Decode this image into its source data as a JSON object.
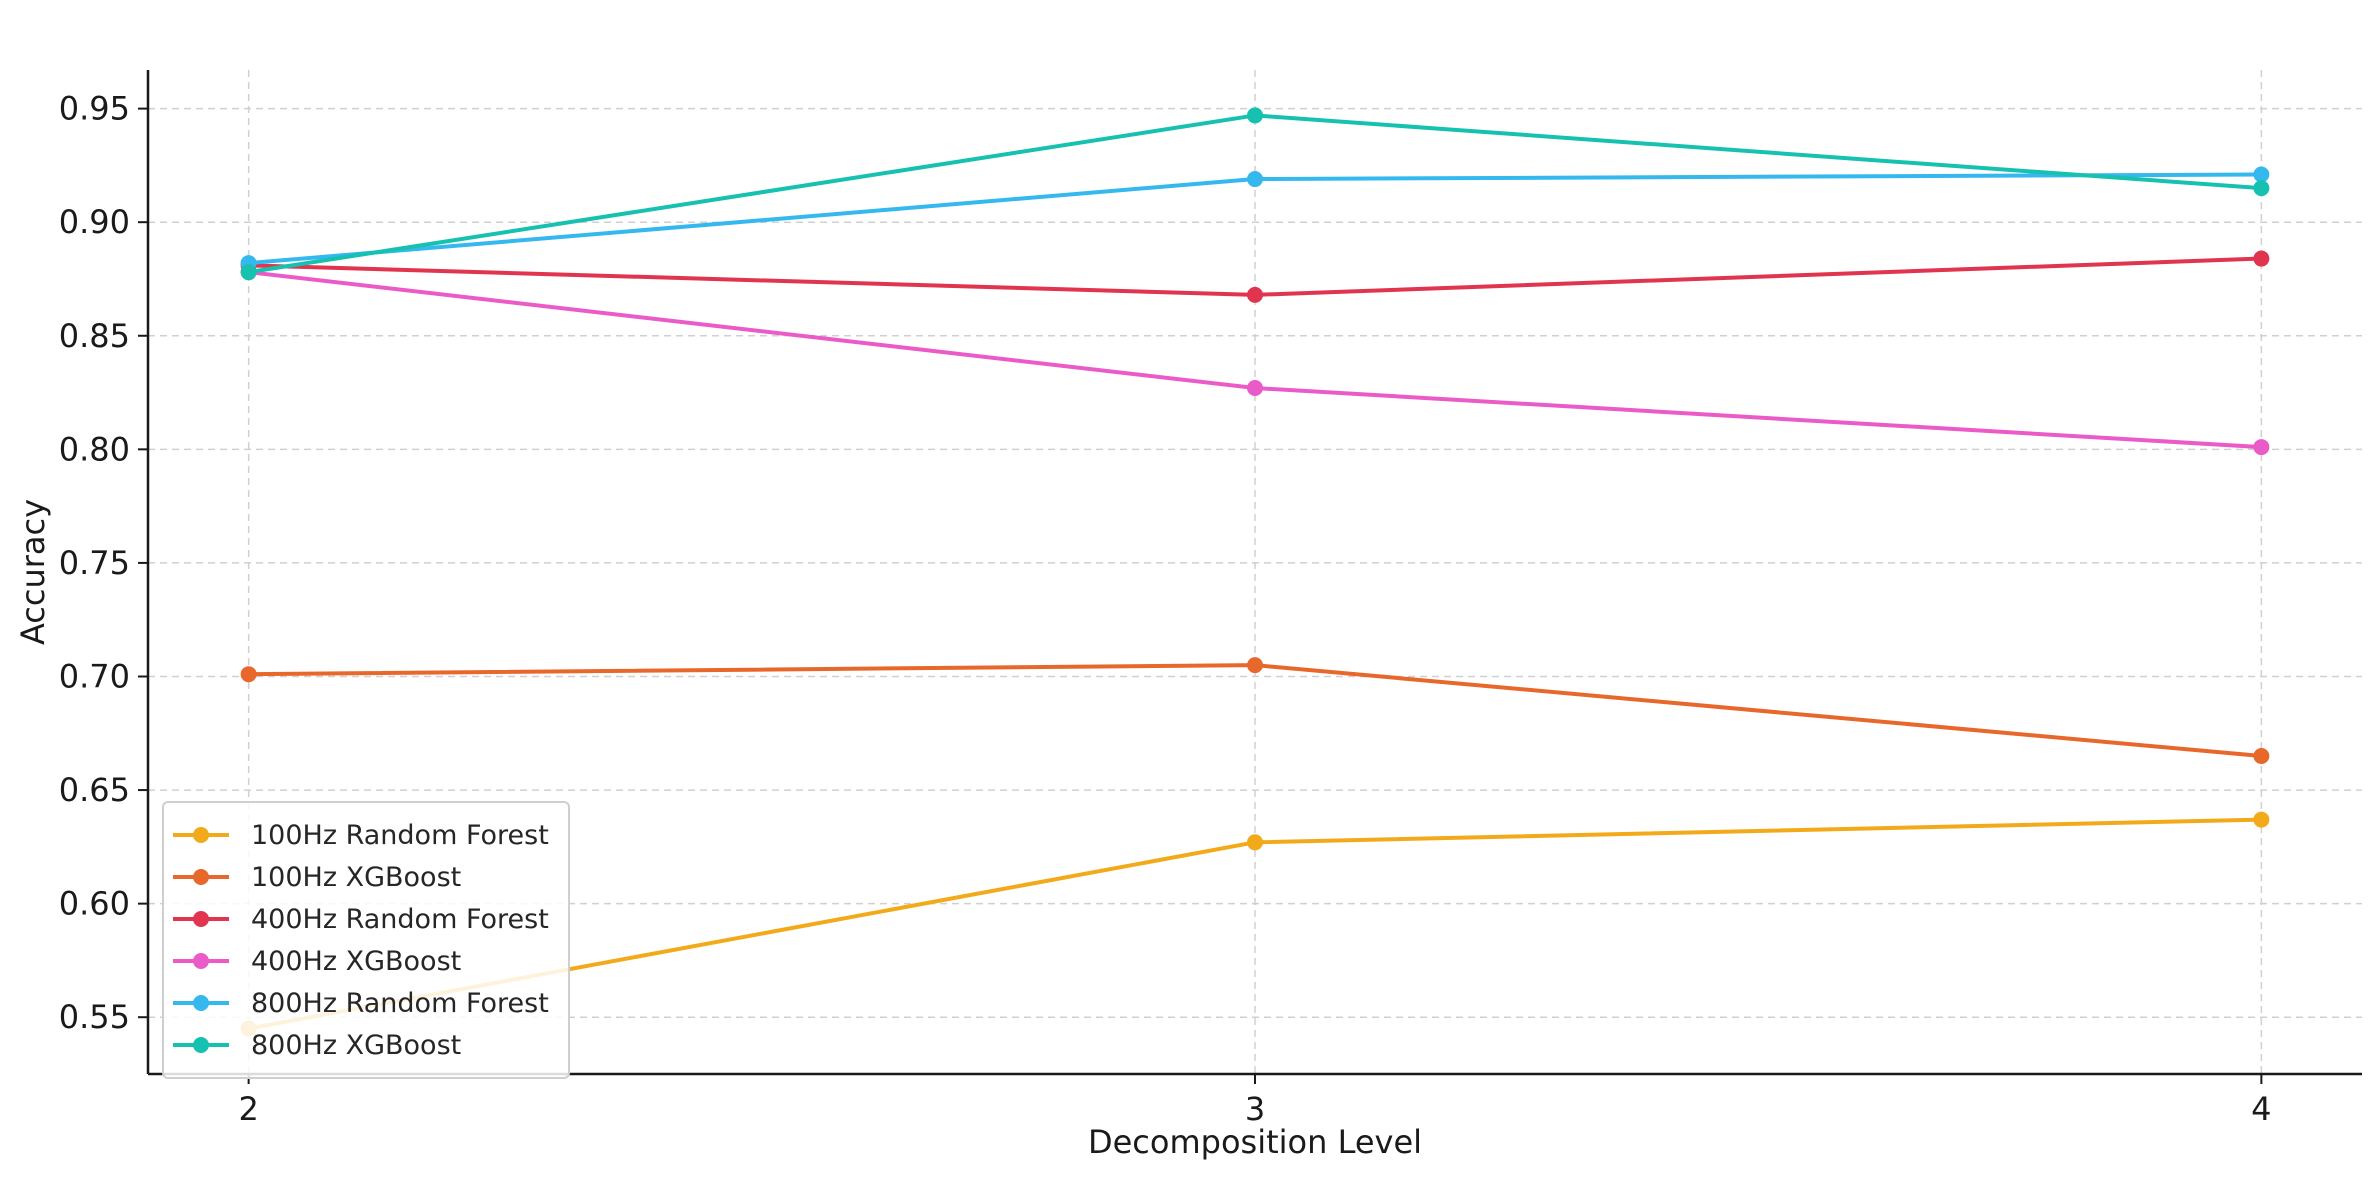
{
  "chart_data": {
    "type": "line",
    "title": "",
    "xlabel": "Decomposition Level",
    "ylabel": "Accuracy",
    "x": [
      2,
      3,
      4
    ],
    "x_tick_labels": [
      "2",
      "3",
      "4"
    ],
    "xlim": [
      1.9,
      4.1
    ],
    "ylim": [
      0.525,
      0.967
    ],
    "y_ticks": [
      0.55,
      0.6,
      0.65,
      0.7,
      0.75,
      0.8,
      0.85,
      0.9,
      0.95
    ],
    "y_tick_labels": [
      "0.55",
      "0.60",
      "0.65",
      "0.70",
      "0.75",
      "0.80",
      "0.85",
      "0.90",
      "0.95"
    ],
    "grid": true,
    "legend_position": "bottom-left",
    "series": [
      {
        "name": "100Hz Random Forest",
        "color": "#F2AA1A",
        "values": [
          0.545,
          0.627,
          0.637
        ]
      },
      {
        "name": "100Hz XGBoost",
        "color": "#E8672A",
        "values": [
          0.701,
          0.705,
          0.665
        ]
      },
      {
        "name": "400Hz Random Forest",
        "color": "#E0344F",
        "values": [
          0.881,
          0.868,
          0.884
        ]
      },
      {
        "name": "400Hz XGBoost",
        "color": "#EA5BC8",
        "values": [
          0.878,
          0.827,
          0.801
        ]
      },
      {
        "name": "800Hz Random Forest",
        "color": "#35B8EE",
        "values": [
          0.882,
          0.919,
          0.921
        ]
      },
      {
        "name": "800Hz XGBoost",
        "color": "#16C1B0",
        "values": [
          0.878,
          0.947,
          0.915
        ]
      }
    ]
  }
}
